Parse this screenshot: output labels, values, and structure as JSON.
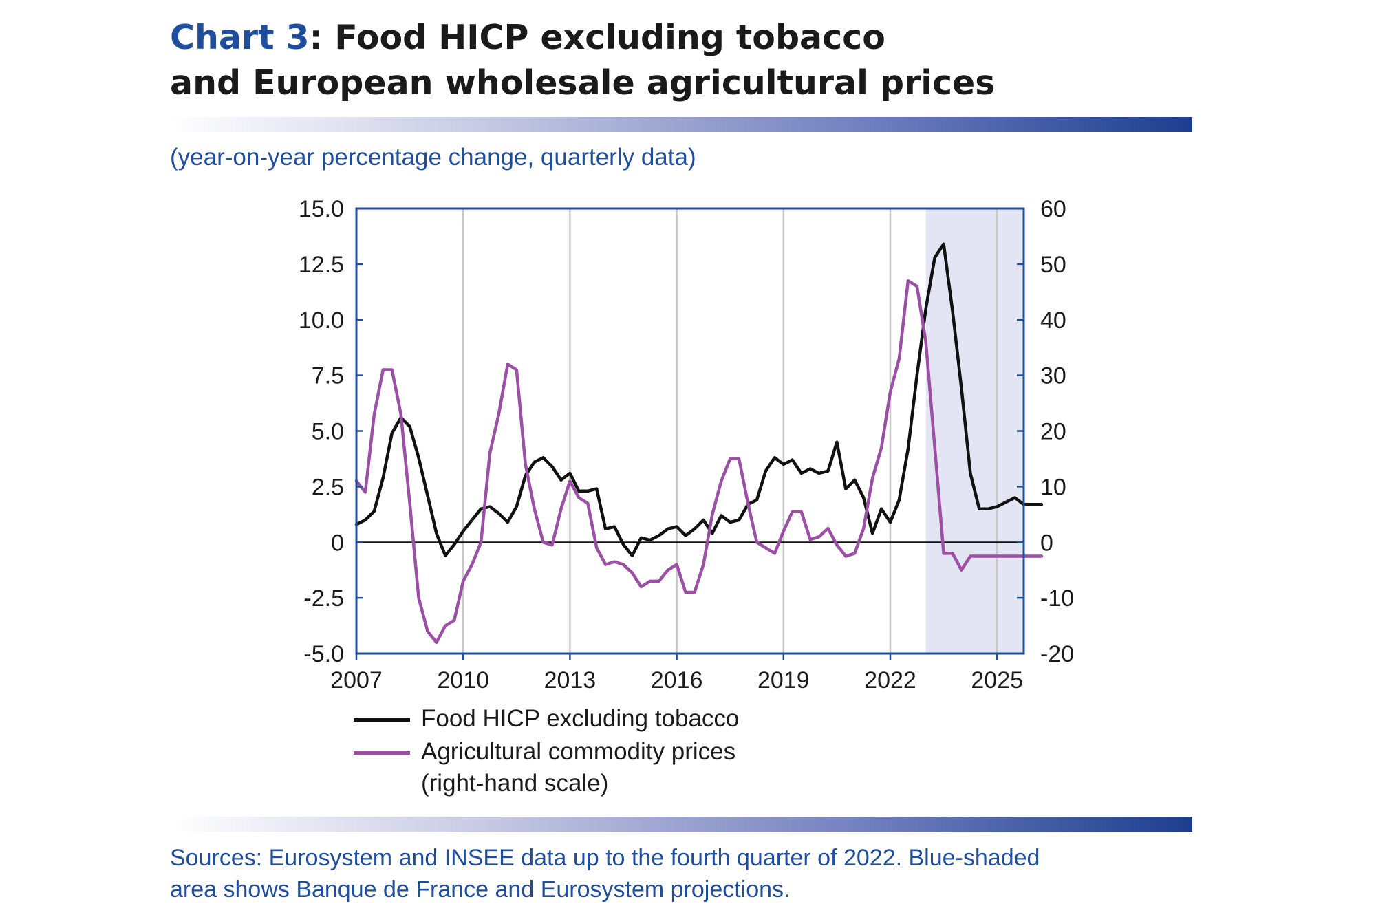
{
  "header": {
    "title_lead": "Chart 3",
    "title_rest_line1": ": Food HICP excluding tobacco",
    "title_line2": "and European wholesale agricultural prices",
    "subtitle": "(year-on-year percentage change, quarterly data)"
  },
  "footer": {
    "source_line1": "Sources: Eurosystem and INSEE data up to the fourth quarter of 2022. Blue-shaded",
    "source_line2": "area shows Banque de France and Eurosystem projections."
  },
  "colors": {
    "title_accent": "#1f4e9c",
    "food_series": "#111111",
    "agri_series": "#9b4fa5",
    "projection_shade": "#e4e5f4",
    "axis": "#1f4e9c",
    "grid": "#c8c8c8"
  },
  "chart_data": {
    "type": "line",
    "x_range": [
      2007.0,
      2025.75
    ],
    "x_ticks": [
      "2007",
      "2010",
      "2013",
      "2016",
      "2019",
      "2022",
      "2025"
    ],
    "y_left_ticks": [
      "15.0",
      "12.5",
      "10.0",
      "7.5",
      "5.0",
      "2.5",
      "0",
      "-2.5",
      "-5.0"
    ],
    "y_right_ticks": [
      "60",
      "50",
      "40",
      "30",
      "20",
      "10",
      "0",
      "-10",
      "-20"
    ],
    "y_left_range": [
      -5.0,
      15.0
    ],
    "y_right_range": [
      -20,
      60
    ],
    "grid": "vertical",
    "zero_line": true,
    "projection_start": 2023.0,
    "projection_end": 2025.75,
    "legend_position": "bottom-left",
    "series": [
      {
        "name": "Food HICP excluding tobacco",
        "axis": "left",
        "color": "#111111",
        "start": 2007.0,
        "step": 0.25,
        "values": [
          0.8,
          1.0,
          1.4,
          2.9,
          4.9,
          5.6,
          5.2,
          3.8,
          2.1,
          0.4,
          -0.6,
          -0.1,
          0.5,
          1.0,
          1.5,
          1.6,
          1.3,
          0.9,
          1.6,
          3.0,
          3.6,
          3.8,
          3.4,
          2.8,
          3.1,
          2.3,
          2.3,
          2.4,
          0.6,
          0.7,
          -0.1,
          -0.6,
          0.2,
          0.1,
          0.3,
          0.6,
          0.7,
          0.3,
          0.6,
          1.0,
          0.4,
          1.2,
          0.9,
          1.0,
          1.7,
          1.9,
          3.2,
          3.8,
          3.5,
          3.7,
          3.1,
          3.3,
          3.1,
          3.2,
          4.5,
          2.4,
          2.8,
          2.0,
          0.4,
          1.5,
          0.9,
          1.9,
          4.2,
          7.5,
          10.5,
          12.8,
          13.4,
          10.4,
          6.9,
          3.1,
          1.5,
          1.5,
          1.6,
          1.8,
          2.0,
          1.7,
          1.7,
          1.7
        ]
      },
      {
        "name": "Agricultural commodity prices",
        "name_line2": "(right-hand scale)",
        "axis": "right",
        "color": "#9b4fa5",
        "start": 2007.0,
        "step": 0.25,
        "values": [
          11,
          9,
          23,
          31,
          31,
          23,
          7,
          -10,
          -16,
          -18,
          -15,
          -14,
          -7,
          -4,
          0,
          16,
          23,
          32,
          31,
          14,
          6,
          0,
          -0.5,
          6,
          11,
          8,
          7,
          -1,
          -4,
          -3.5,
          -4,
          -5.5,
          -8,
          -7,
          -7,
          -5,
          -4,
          -9,
          -9,
          -4,
          5,
          11,
          15,
          15,
          7,
          0,
          -1,
          -2,
          2,
          5.5,
          5.5,
          0.5,
          1,
          2.5,
          -0.5,
          -2.5,
          -2,
          2.5,
          11.5,
          17,
          27,
          33,
          47,
          46,
          36,
          17,
          -2,
          -2,
          -5,
          -2.5,
          -2.5,
          -2.5,
          -2.5,
          -2.5,
          -2.5,
          -2.5,
          -2.5,
          -2.5
        ]
      }
    ]
  }
}
